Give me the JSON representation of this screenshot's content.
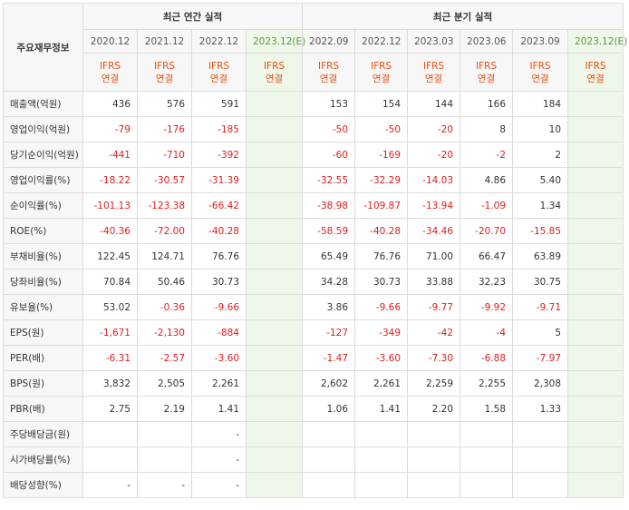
{
  "header": {
    "row_label": "주요재무정보",
    "annual_group": "최근 연간 실적",
    "quarter_group": "최근 분기 실적",
    "annual_periods": [
      "2020.12",
      "2021.12",
      "2022.12",
      "2023.12(E)"
    ],
    "quarter_periods": [
      "2022.09",
      "2022.12",
      "2023.03",
      "2023.06",
      "2023.09",
      "2023.12(E)"
    ],
    "ifrs_line1": "IFRS",
    "ifrs_line2": "연결"
  },
  "colors": {
    "negative": "#e01d1d",
    "ifrs": "#e8500e",
    "estimate_bg": "#eef7e9",
    "estimate_text": "#5a9a3a"
  },
  "rows": [
    {
      "label": "매출액(억원)",
      "values": [
        "436",
        "576",
        "591",
        "",
        "153",
        "154",
        "144",
        "166",
        "184",
        ""
      ]
    },
    {
      "label": "영업이익(억원)",
      "values": [
        "-79",
        "-176",
        "-185",
        "",
        "-50",
        "-50",
        "-20",
        "8",
        "10",
        ""
      ]
    },
    {
      "label": "당기순이익(억원)",
      "values": [
        "-441",
        "-710",
        "-392",
        "",
        "-60",
        "-169",
        "-20",
        "-2",
        "2",
        ""
      ]
    },
    {
      "label": "영업이익률(%)",
      "values": [
        "-18.22",
        "-30.57",
        "-31.39",
        "",
        "-32.55",
        "-32.29",
        "-14.03",
        "4.86",
        "5.40",
        ""
      ]
    },
    {
      "label": "순이익률(%)",
      "values": [
        "-101.13",
        "-123.38",
        "-66.42",
        "",
        "-38.98",
        "-109.87",
        "-13.94",
        "-1.09",
        "1.34",
        ""
      ]
    },
    {
      "label": "ROE(%)",
      "values": [
        "-40.36",
        "-72.00",
        "-40.28",
        "",
        "-58.59",
        "-40.28",
        "-34.46",
        "-20.70",
        "-15.85",
        ""
      ]
    },
    {
      "label": "부채비율(%)",
      "values": [
        "122.45",
        "124.71",
        "76.76",
        "",
        "65.49",
        "76.76",
        "71.00",
        "66.47",
        "63.89",
        ""
      ]
    },
    {
      "label": "당좌비율(%)",
      "values": [
        "70.84",
        "50.46",
        "30.73",
        "",
        "34.28",
        "30.73",
        "33.88",
        "32.23",
        "30.75",
        ""
      ]
    },
    {
      "label": "유보율(%)",
      "values": [
        "53.02",
        "-0.36",
        "-9.66",
        "",
        "3.86",
        "-9.66",
        "-9.77",
        "-9.92",
        "-9.71",
        ""
      ]
    },
    {
      "label": "EPS(원)",
      "values": [
        "-1,671",
        "-2,130",
        "-884",
        "",
        "-127",
        "-349",
        "-42",
        "-4",
        "5",
        ""
      ]
    },
    {
      "label": "PER(배)",
      "values": [
        "-6.31",
        "-2.57",
        "-3.60",
        "",
        "-1.47",
        "-3.60",
        "-7.30",
        "-6.88",
        "-7.97",
        ""
      ]
    },
    {
      "label": "BPS(원)",
      "values": [
        "3,832",
        "2,505",
        "2,261",
        "",
        "2,602",
        "2,261",
        "2,259",
        "2,255",
        "2,308",
        ""
      ]
    },
    {
      "label": "PBR(배)",
      "values": [
        "2.75",
        "2.19",
        "1.41",
        "",
        "1.06",
        "1.41",
        "2.20",
        "1.58",
        "1.33",
        ""
      ]
    },
    {
      "label": "주당배당금(원)",
      "values": [
        "",
        "",
        "-",
        "",
        "",
        "",
        "",
        "",
        "",
        ""
      ]
    },
    {
      "label": "시가배당률(%)",
      "values": [
        "",
        "",
        "-",
        "",
        "",
        "",
        "",
        "",
        "",
        ""
      ]
    },
    {
      "label": "배당성향(%)",
      "values": [
        "-",
        "-",
        "-",
        "",
        "",
        "",
        "",
        "",
        "",
        ""
      ]
    }
  ]
}
